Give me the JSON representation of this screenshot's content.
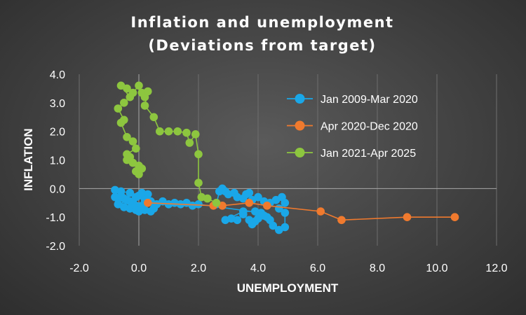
{
  "chart_data": {
    "type": "scatter",
    "title_lines": [
      "Inflation and unemployment",
      "(Deviations from target)"
    ],
    "xlabel": "UNEMPLOYMENT",
    "ylabel": "INFLATION",
    "xlim": [
      -2.0,
      12.0
    ],
    "ylim": [
      -2.0,
      4.0
    ],
    "x_ticks": [
      "-2.0",
      "0.0",
      "2.0",
      "4.0",
      "6.0",
      "8.0",
      "10.0",
      "12.0"
    ],
    "y_ticks": [
      "-2.0",
      "-1.0",
      "0.0",
      "1.0",
      "2.0",
      "3.0",
      "4.0"
    ],
    "grid": "vertical",
    "legend_position": "top-right-inside",
    "series": [
      {
        "name": "Jan 2009-Mar 2020",
        "color": "#1aa7e8",
        "points": [
          [
            2.6,
            -0.55
          ],
          [
            2.7,
            -0.1
          ],
          [
            2.8,
            0.0
          ],
          [
            2.9,
            -0.1
          ],
          [
            3.0,
            -0.2
          ],
          [
            3.2,
            -0.15
          ],
          [
            3.3,
            -0.3
          ],
          [
            3.5,
            -0.35
          ],
          [
            3.6,
            -0.2
          ],
          [
            3.7,
            -0.15
          ],
          [
            3.8,
            -0.4
          ],
          [
            4.0,
            -0.3
          ],
          [
            4.2,
            -0.45
          ],
          [
            4.4,
            -0.5
          ],
          [
            4.6,
            -0.4
          ],
          [
            4.8,
            -0.3
          ],
          [
            4.9,
            -0.5
          ],
          [
            4.7,
            -0.7
          ],
          [
            4.9,
            -0.85
          ],
          [
            4.9,
            -1.35
          ],
          [
            4.7,
            -1.45
          ],
          [
            4.5,
            -1.3
          ],
          [
            4.4,
            -1.1
          ],
          [
            4.3,
            -1.0
          ],
          [
            4.2,
            -0.95
          ],
          [
            4.0,
            -1.05
          ],
          [
            3.9,
            -1.15
          ],
          [
            3.8,
            -1.25
          ],
          [
            3.7,
            -1.1
          ],
          [
            3.5,
            -0.9
          ],
          [
            3.3,
            -1.1
          ],
          [
            3.1,
            -1.05
          ],
          [
            2.9,
            -1.1
          ],
          [
            3.5,
            -0.8
          ],
          [
            3.9,
            -0.8
          ],
          [
            4.1,
            -0.85
          ],
          [
            2.0,
            -0.55
          ],
          [
            1.8,
            -0.6
          ],
          [
            1.6,
            -0.5
          ],
          [
            1.4,
            -0.55
          ],
          [
            1.2,
            -0.5
          ],
          [
            1.0,
            -0.55
          ],
          [
            0.8,
            -0.45
          ],
          [
            0.6,
            -0.55
          ],
          [
            0.5,
            -0.7
          ],
          [
            0.4,
            -0.8
          ],
          [
            0.2,
            -0.75
          ],
          [
            0.0,
            -0.8
          ],
          [
            -0.1,
            -0.6
          ],
          [
            -0.2,
            -0.5
          ],
          [
            -0.3,
            -0.45
          ],
          [
            -0.4,
            -0.4
          ],
          [
            -0.5,
            -0.35
          ],
          [
            -0.6,
            -0.25
          ],
          [
            -0.7,
            -0.35
          ],
          [
            -0.8,
            -0.3
          ],
          [
            -0.8,
            -0.05
          ],
          [
            -0.6,
            -0.1
          ],
          [
            -0.3,
            -0.15
          ],
          [
            -0.1,
            -0.3
          ],
          [
            0.0,
            -0.25
          ],
          [
            0.1,
            -0.15
          ],
          [
            0.3,
            -0.2
          ],
          [
            -0.7,
            -0.55
          ],
          [
            -0.5,
            -0.65
          ],
          [
            -0.3,
            -0.7
          ],
          [
            -0.1,
            -0.75
          ],
          [
            0.1,
            -0.6
          ],
          [
            0.2,
            -0.4
          ],
          [
            0.4,
            -0.45
          ]
        ]
      },
      {
        "name": "Apr 2020-Dec 2020",
        "color": "#f07a2e",
        "points": [
          [
            10.6,
            -1.0
          ],
          [
            9.0,
            -1.0
          ],
          [
            6.8,
            -1.1
          ],
          [
            6.1,
            -0.8
          ],
          [
            4.3,
            -0.6
          ],
          [
            3.7,
            -0.5
          ],
          [
            2.8,
            -0.6
          ],
          [
            2.5,
            -0.6
          ],
          [
            0.3,
            -0.5
          ]
        ]
      },
      {
        "name": "Jan 2021-Apr 2025",
        "color": "#8dc63f",
        "points": [
          [
            0.0,
            0.5
          ],
          [
            -0.1,
            0.6
          ],
          [
            0.1,
            0.7
          ],
          [
            0.0,
            0.8
          ],
          [
            -0.2,
            0.9
          ],
          [
            -0.4,
            1.0
          ],
          [
            -0.3,
            1.1
          ],
          [
            -0.4,
            1.2
          ],
          [
            -0.1,
            1.4
          ],
          [
            -0.2,
            1.65
          ],
          [
            -0.4,
            1.8
          ],
          [
            -0.6,
            2.3
          ],
          [
            -0.5,
            2.4
          ],
          [
            -0.7,
            2.8
          ],
          [
            -0.5,
            3.0
          ],
          [
            -0.3,
            3.2
          ],
          [
            -0.6,
            3.6
          ],
          [
            -0.4,
            3.5
          ],
          [
            -0.2,
            3.35
          ],
          [
            0.0,
            3.6
          ],
          [
            0.1,
            3.35
          ],
          [
            0.2,
            3.2
          ],
          [
            0.3,
            3.4
          ],
          [
            0.2,
            2.9
          ],
          [
            0.5,
            2.5
          ],
          [
            0.7,
            2.0
          ],
          [
            1.0,
            2.0
          ],
          [
            1.3,
            2.0
          ],
          [
            1.6,
            1.95
          ],
          [
            1.7,
            1.6
          ],
          [
            1.9,
            1.9
          ],
          [
            2.0,
            1.2
          ],
          [
            2.0,
            0.2
          ],
          [
            2.1,
            -0.3
          ],
          [
            2.3,
            -0.35
          ],
          [
            2.6,
            -0.5
          ]
        ]
      }
    ]
  }
}
